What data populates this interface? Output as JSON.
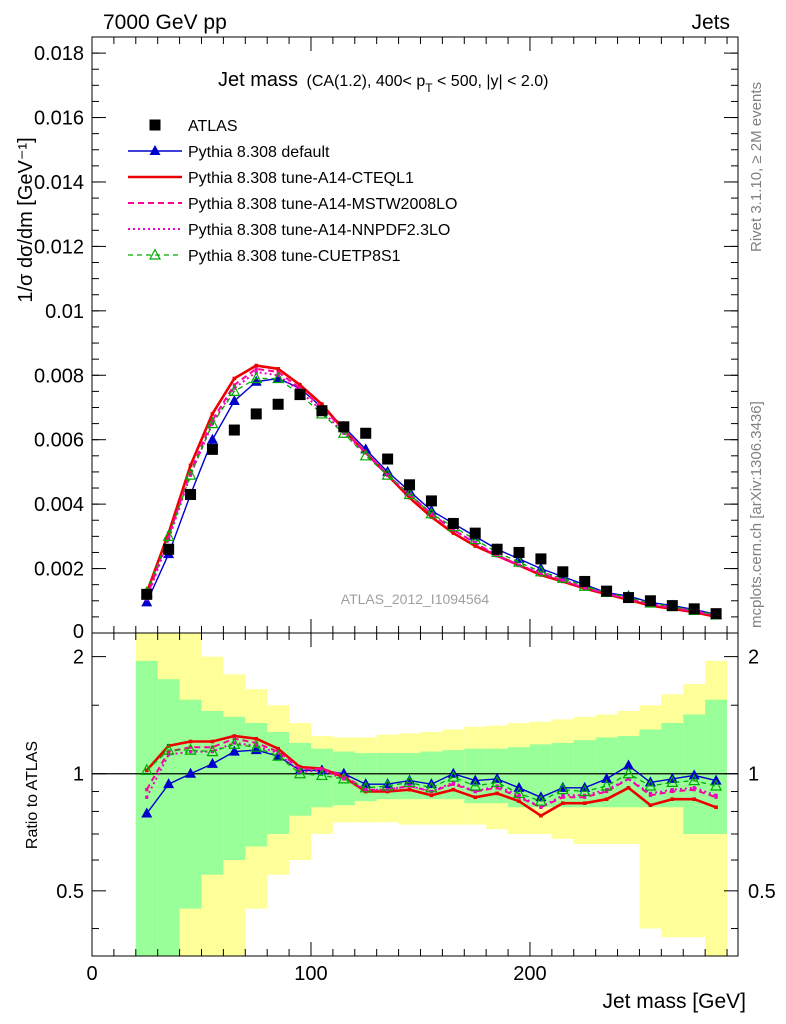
{
  "header": {
    "left": "7000 GeV pp",
    "right": "Jets"
  },
  "plot_title": {
    "main": "Jet mass",
    "detail_prefix": "(CA(1.2), 400< p",
    "detail_sub": "T",
    "detail_suffix": " < 500, |y| < 2.0)"
  },
  "side_labels": {
    "rivet": "Rivet 3.1.10, ≥ 2M events",
    "mcplots": "mcplots.cern.ch [arXiv:1306.3436]"
  },
  "watermark": "ATLAS_2012_I1094564",
  "colors": {
    "atlas": "#000000",
    "default": "#0000cc",
    "cteql1": "#ee0000",
    "mstw": "#ff0099",
    "nnpdf": "#ee00cc",
    "cuetp8s1": "#00aa00",
    "band_inner": "#99ff99",
    "band_outer": "#ffff99"
  },
  "chart_data": [
    {
      "type": "line",
      "panel": "main",
      "xlabel": "Jet mass [GeV]",
      "ylabel": "1/σ dσ/dm [GeV⁻¹]",
      "xlim": [
        0,
        295
      ],
      "ylim": [
        0,
        0.0185
      ],
      "yticks": [
        {
          "v": 0.002,
          "label": "0.002"
        },
        {
          "v": 0.004,
          "label": "0.004"
        },
        {
          "v": 0.006,
          "label": "0.006"
        },
        {
          "v": 0.008,
          "label": "0.008"
        },
        {
          "v": 0.01,
          "label": "0.01"
        },
        {
          "v": 0.012,
          "label": "0.012"
        },
        {
          "v": 0.014,
          "label": "0.014"
        },
        {
          "v": 0.016,
          "label": "0.016"
        },
        {
          "v": 0.018,
          "label": "0.018"
        }
      ],
      "y_zero_label": "0",
      "x": [
        25,
        35,
        45,
        55,
        65,
        75,
        85,
        95,
        105,
        115,
        125,
        135,
        145,
        155,
        165,
        175,
        185,
        195,
        205,
        215,
        225,
        235,
        245,
        255,
        265,
        275,
        285
      ],
      "series": [
        {
          "name": "ATLAS",
          "key": "atlas",
          "values": [
            0.0012,
            0.0026,
            0.0043,
            0.0057,
            0.0063,
            0.0068,
            0.0071,
            0.0074,
            0.0069,
            0.0064,
            0.0062,
            0.0054,
            0.0046,
            0.0041,
            0.0034,
            0.0031,
            0.0026,
            0.0025,
            0.0023,
            0.0019,
            0.0016,
            0.0013,
            0.0011,
            0.001,
            0.00085,
            0.00075,
            0.0006
          ]
        },
        {
          "name": "Pythia 8.308 default",
          "key": "default",
          "values": [
            0.00095,
            0.00245,
            0.0043,
            0.006,
            0.0072,
            0.0078,
            0.0079,
            0.0076,
            0.007,
            0.0064,
            0.0057,
            0.005,
            0.0044,
            0.0038,
            0.0034,
            0.003,
            0.0026,
            0.0023,
            0.002,
            0.00175,
            0.0015,
            0.00125,
            0.00115,
            0.00095,
            0.00085,
            0.00073,
            0.00058
          ]
        },
        {
          "name": "Pythia 8.308 tune-A14-CTEQL1",
          "key": "cteql1",
          "values": [
            0.00125,
            0.0031,
            0.0052,
            0.0068,
            0.0079,
            0.0083,
            0.0082,
            0.0077,
            0.0071,
            0.0063,
            0.0056,
            0.0049,
            0.0042,
            0.0036,
            0.0031,
            0.0027,
            0.0024,
            0.0021,
            0.0018,
            0.0016,
            0.00138,
            0.0012,
            0.00103,
            0.00085,
            0.00075,
            0.00065,
            0.0005
          ]
        },
        {
          "name": "Pythia 8.308 tune-A14-MSTW2008LO",
          "key": "mstw",
          "values": [
            0.0011,
            0.003,
            0.005,
            0.0066,
            0.0077,
            0.0082,
            0.0081,
            0.0076,
            0.007,
            0.0063,
            0.0056,
            0.0049,
            0.0043,
            0.0037,
            0.0032,
            0.0028,
            0.0024,
            0.0021,
            0.00185,
            0.00162,
            0.0014,
            0.00122,
            0.00106,
            0.00089,
            0.00078,
            0.00068,
            0.00053
          ]
        },
        {
          "name": "Pythia 8.308 tune-A14-NNPDF2.3LO",
          "key": "nnpdf",
          "values": [
            0.00105,
            0.0029,
            0.0049,
            0.0065,
            0.0076,
            0.0081,
            0.008,
            0.0075,
            0.0069,
            0.0062,
            0.0056,
            0.0049,
            0.0043,
            0.0037,
            0.0032,
            0.0028,
            0.0024,
            0.0021,
            0.00188,
            0.00165,
            0.0014,
            0.00123,
            0.00107,
            0.0009,
            0.00079,
            0.00069,
            0.00054
          ]
        },
        {
          "name": "Pythia 8.308 tune-CUETP8S1",
          "key": "cuetp8s1",
          "values": [
            0.00125,
            0.003,
            0.0049,
            0.0065,
            0.0075,
            0.0079,
            0.0079,
            0.0074,
            0.0068,
            0.0062,
            0.0055,
            0.0049,
            0.0043,
            0.0037,
            0.0033,
            0.0029,
            0.0025,
            0.0022,
            0.0019,
            0.0017,
            0.00145,
            0.00126,
            0.0011,
            0.00093,
            0.00082,
            0.0007,
            0.00056
          ]
        }
      ]
    },
    {
      "type": "line",
      "panel": "ratio",
      "ylabel": "Ratio to ATLAS",
      "xlabel": "Jet mass [GeV]",
      "xlim": [
        0,
        295
      ],
      "ylim": [
        0.34,
        2.3
      ],
      "log_y": true,
      "xticks": [
        {
          "v": 0,
          "label": "0"
        },
        {
          "v": 100,
          "label": "100"
        },
        {
          "v": 200,
          "label": "200"
        }
      ],
      "yticks": [
        {
          "v": 0.5,
          "label": "0.5"
        },
        {
          "v": 1,
          "label": "1"
        },
        {
          "v": 2,
          "label": "2"
        }
      ],
      "x": [
        25,
        35,
        45,
        55,
        65,
        75,
        85,
        95,
        105,
        115,
        125,
        135,
        145,
        155,
        165,
        175,
        185,
        195,
        205,
        215,
        225,
        235,
        245,
        255,
        265,
        275,
        285
      ],
      "bin_edges": [
        20,
        30,
        40,
        50,
        60,
        70,
        80,
        90,
        100,
        110,
        120,
        130,
        140,
        150,
        160,
        170,
        180,
        190,
        200,
        210,
        220,
        230,
        240,
        250,
        260,
        270,
        280,
        290
      ],
      "band_inner": {
        "lo": [
          0.1,
          0.1,
          0.45,
          0.55,
          0.6,
          0.65,
          0.7,
          0.78,
          0.82,
          0.83,
          0.85,
          0.86,
          0.86,
          0.86,
          0.86,
          0.84,
          0.84,
          0.82,
          0.82,
          0.82,
          0.82,
          0.82,
          0.82,
          0.82,
          0.82,
          0.7,
          0.7
        ],
        "hi": [
          1.95,
          1.75,
          1.55,
          1.45,
          1.4,
          1.35,
          1.28,
          1.2,
          1.16,
          1.14,
          1.13,
          1.13,
          1.13,
          1.14,
          1.15,
          1.16,
          1.16,
          1.17,
          1.19,
          1.2,
          1.22,
          1.24,
          1.25,
          1.3,
          1.35,
          1.42,
          1.55
        ]
      },
      "band_outer": {
        "lo": [
          0.1,
          0.1,
          0.1,
          0.1,
          0.3,
          0.45,
          0.55,
          0.6,
          0.7,
          0.75,
          0.75,
          0.75,
          0.74,
          0.74,
          0.74,
          0.74,
          0.72,
          0.7,
          0.7,
          0.68,
          0.66,
          0.66,
          0.66,
          0.4,
          0.38,
          0.38,
          0.1
        ],
        "hi": [
          2.6,
          2.6,
          2.3,
          2.0,
          1.8,
          1.65,
          1.5,
          1.35,
          1.25,
          1.24,
          1.24,
          1.26,
          1.27,
          1.28,
          1.3,
          1.32,
          1.33,
          1.35,
          1.36,
          1.38,
          1.4,
          1.42,
          1.45,
          1.5,
          1.6,
          1.7,
          1.95
        ]
      },
      "series": [
        {
          "name": "Pythia 8.308 default",
          "key": "default",
          "values": [
            0.79,
            0.94,
            1.0,
            1.06,
            1.14,
            1.15,
            1.11,
            1.02,
            1.02,
            1.0,
            0.94,
            0.94,
            0.96,
            0.94,
            1.0,
            0.96,
            0.97,
            0.92,
            0.87,
            0.92,
            0.92,
            0.97,
            1.05,
            0.95,
            0.97,
            0.99,
            0.96
          ]
        },
        {
          "name": "Pythia 8.308 tune-A14-CTEQL1",
          "key": "cteql1",
          "values": [
            1.02,
            1.18,
            1.21,
            1.21,
            1.25,
            1.23,
            1.16,
            1.04,
            1.03,
            0.98,
            0.9,
            0.9,
            0.91,
            0.88,
            0.91,
            0.87,
            0.89,
            0.85,
            0.78,
            0.84,
            0.84,
            0.86,
            0.92,
            0.83,
            0.86,
            0.86,
            0.82
          ]
        },
        {
          "name": "Pythia 8.308 tune-A14-MSTW2008LO",
          "key": "mstw",
          "values": [
            0.91,
            1.14,
            1.17,
            1.17,
            1.23,
            1.2,
            1.14,
            1.03,
            1.03,
            0.99,
            0.91,
            0.91,
            0.93,
            0.9,
            0.94,
            0.9,
            0.92,
            0.87,
            0.82,
            0.87,
            0.87,
            0.9,
            0.97,
            0.88,
            0.9,
            0.91,
            0.87
          ]
        },
        {
          "name": "Pythia 8.308 tune-A14-NNPDF2.3LO",
          "key": "nnpdf",
          "values": [
            0.87,
            1.12,
            1.14,
            1.14,
            1.2,
            1.18,
            1.13,
            1.01,
            1.02,
            0.97,
            0.91,
            0.91,
            0.93,
            0.9,
            0.95,
            0.9,
            0.93,
            0.88,
            0.82,
            0.88,
            0.88,
            0.91,
            0.97,
            0.89,
            0.91,
            0.92,
            0.88
          ]
        },
        {
          "name": "Pythia 8.308 tune-CUETP8S1",
          "key": "cuetp8s1",
          "values": [
            1.02,
            1.15,
            1.15,
            1.14,
            1.19,
            1.17,
            1.11,
            1.0,
            0.99,
            0.97,
            0.92,
            0.93,
            0.95,
            0.92,
            0.98,
            0.93,
            0.95,
            0.89,
            0.85,
            0.91,
            0.9,
            0.93,
            1.0,
            0.93,
            0.95,
            0.96,
            0.93
          ]
        }
      ]
    }
  ],
  "legend": [
    {
      "key": "atlas",
      "label": "ATLAS",
      "marker": "square",
      "dash": "none"
    },
    {
      "key": "default",
      "label": "Pythia 8.308 default",
      "marker": "triangle",
      "dash": "solid"
    },
    {
      "key": "cteql1",
      "label": "Pythia 8.308 tune-A14-CTEQL1",
      "marker": "none",
      "dash": "solid-thick"
    },
    {
      "key": "mstw",
      "label": "Pythia 8.308 tune-A14-MSTW2008LO",
      "marker": "none",
      "dash": "dashed"
    },
    {
      "key": "nnpdf",
      "label": "Pythia 8.308 tune-A14-NNPDF2.3LO",
      "marker": "none",
      "dash": "dotted"
    },
    {
      "key": "cuetp8s1",
      "label": "Pythia 8.308 tune-CUETP8S1",
      "marker": "triangle-open",
      "dash": "dashed"
    }
  ]
}
